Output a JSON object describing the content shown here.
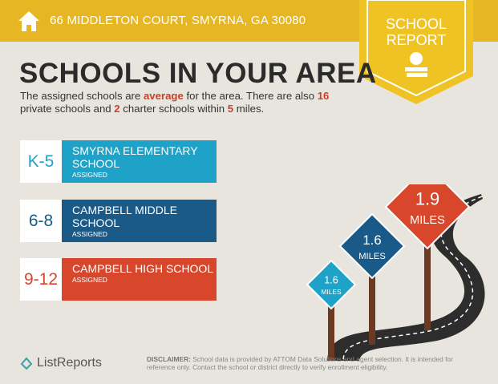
{
  "header": {
    "address": "66 MIDDLETON COURT, SMYRNA, GA 30080"
  },
  "badge": {
    "line1": "SCHOOL",
    "line2": "REPORT"
  },
  "title": "SCHOOLS IN YOUR AREA",
  "summary": [
    {
      "text": "The assigned schools are ",
      "highlight": false
    },
    {
      "text": "average",
      "highlight": true
    },
    {
      "text": " for the area. There are also ",
      "highlight": false
    },
    {
      "text": "16",
      "highlight": true
    },
    {
      "text": " private schools and ",
      "highlight": false
    },
    {
      "text": "2",
      "highlight": true
    },
    {
      "text": " charter schools within ",
      "highlight": false
    },
    {
      "text": "5",
      "highlight": true
    },
    {
      "text": " miles.",
      "highlight": false
    }
  ],
  "schools": [
    {
      "grade": "K-5",
      "name": "SMYRNA ELEMENTARY SCHOOL",
      "status": "ASSIGNED",
      "color": "#1fa2c8"
    },
    {
      "grade": "6-8",
      "name": "CAMPBELL MIDDLE SCHOOL",
      "status": "ASSIGNED",
      "color": "#1a5a88"
    },
    {
      "grade": "9-12",
      "name": "CAMPBELL HIGH SCHOOL",
      "status": "ASSIGNED",
      "color": "#d8472b"
    }
  ],
  "signs": [
    {
      "distance": "1.6",
      "unit": "MILES",
      "color": "#1fa2c8"
    },
    {
      "distance": "1.6",
      "unit": "MILES",
      "color": "#1a5a88"
    },
    {
      "distance": "1.9",
      "unit": "MILES",
      "color": "#d8472b"
    }
  ],
  "footer": {
    "logo": "ListReports",
    "disclaimer_label": "DISCLAIMER:",
    "disclaimer": " School data is provided by ATTOM Data Solutions and agent selection. It is intended for reference only. Contact the school or district directly to verify enrollment eligibility."
  }
}
